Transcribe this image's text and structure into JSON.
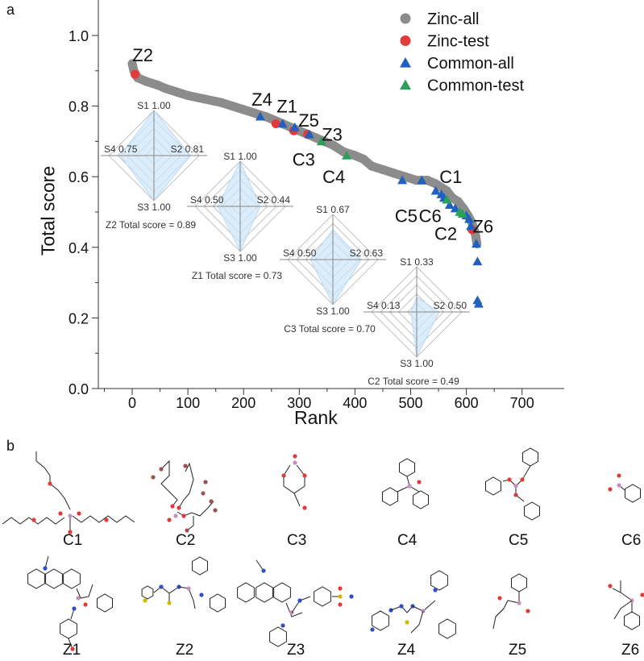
{
  "panel_labels": {
    "a": "a",
    "b": "b"
  },
  "chart_data": [
    {
      "type": "scatter",
      "xlabel": "Rank",
      "ylabel": "Total score",
      "xlim": [
        -60,
        720
      ],
      "ylim": [
        0,
        1.1
      ],
      "xticks": [
        "0",
        "100",
        "200",
        "300",
        "400",
        "500",
        "600",
        "700"
      ],
      "yticks": [
        "0.0",
        "0.2",
        "0.4",
        "0.6",
        "0.8",
        "1.0"
      ],
      "grid": false,
      "legend_position": "top-right",
      "series": [
        {
          "name": "Zinc-all",
          "marker": "circle",
          "color": "#8c8c8c",
          "points": [
            [
              0,
              0.92
            ],
            [
              3,
              0.9
            ],
            [
              10,
              0.88
            ],
            [
              25,
              0.87
            ],
            [
              45,
              0.86
            ],
            [
              60,
              0.85
            ],
            [
              80,
              0.84
            ],
            [
              100,
              0.83
            ],
            [
              130,
              0.82
            ],
            [
              160,
              0.81
            ],
            [
              180,
              0.8
            ],
            [
              200,
              0.79
            ],
            [
              220,
              0.78
            ],
            [
              240,
              0.77
            ],
            [
              255,
              0.76
            ],
            [
              270,
              0.75
            ],
            [
              285,
              0.74
            ],
            [
              300,
              0.73
            ],
            [
              315,
              0.72
            ],
            [
              330,
              0.71
            ],
            [
              345,
              0.7
            ],
            [
              360,
              0.69
            ],
            [
              380,
              0.67
            ],
            [
              400,
              0.66
            ],
            [
              415,
              0.65
            ],
            [
              430,
              0.63
            ],
            [
              450,
              0.62
            ],
            [
              470,
              0.61
            ],
            [
              490,
              0.6
            ],
            [
              510,
              0.59
            ],
            [
              530,
              0.59
            ],
            [
              545,
              0.58
            ],
            [
              555,
              0.57
            ],
            [
              565,
              0.56
            ],
            [
              575,
              0.54
            ],
            [
              585,
              0.53
            ],
            [
              595,
              0.51
            ],
            [
              603,
              0.49
            ],
            [
              610,
              0.47
            ],
            [
              614,
              0.45
            ],
            [
              617,
              0.43
            ],
            [
              619,
              0.41
            ]
          ]
        },
        {
          "name": "Zinc-test",
          "marker": "circle",
          "color": "#e23a3a",
          "points": [
            [
              5,
              0.89
            ],
            [
              258,
              0.75
            ],
            [
              290,
              0.73
            ],
            [
              315,
              0.72
            ],
            [
              610,
              0.45
            ]
          ]
        },
        {
          "name": "Common-all",
          "marker": "triangle",
          "color": "#2060c0",
          "points": [
            [
              230,
              0.77
            ],
            [
              270,
              0.75
            ],
            [
              292,
              0.74
            ],
            [
              318,
              0.72
            ],
            [
              485,
              0.59
            ],
            [
              520,
              0.59
            ],
            [
              545,
              0.56
            ],
            [
              555,
              0.55
            ],
            [
              560,
              0.54
            ],
            [
              570,
              0.52
            ],
            [
              580,
              0.51
            ],
            [
              600,
              0.49
            ],
            [
              605,
              0.48
            ],
            [
              608,
              0.46
            ],
            [
              618,
              0.41
            ],
            [
              620,
              0.36
            ],
            [
              620,
              0.25
            ],
            [
              622,
              0.24
            ]
          ]
        },
        {
          "name": "Common-test",
          "marker": "triangle",
          "color": "#2aa05a",
          "points": [
            [
              340,
              0.7
            ],
            [
              385,
              0.66
            ],
            [
              565,
              0.535
            ],
            [
              588,
              0.5
            ],
            [
              593,
              0.495
            ]
          ]
        }
      ],
      "annotations": [
        {
          "text": "Z2",
          "x": 19,
          "y": 0.945
        },
        {
          "text": "Z4",
          "x": 233,
          "y": 0.82
        },
        {
          "text": "Z1",
          "x": 278,
          "y": 0.8
        },
        {
          "text": "Z5",
          "x": 317,
          "y": 0.76
        },
        {
          "text": "Z3",
          "x": 359,
          "y": 0.72
        },
        {
          "text": "C3",
          "x": 308,
          "y": 0.65
        },
        {
          "text": "C4",
          "x": 362,
          "y": 0.6
        },
        {
          "text": "C1",
          "x": 572,
          "y": 0.6
        },
        {
          "text": "C5",
          "x": 492,
          "y": 0.49
        },
        {
          "text": "C6",
          "x": 535,
          "y": 0.49
        },
        {
          "text": "C2",
          "x": 563,
          "y": 0.44
        },
        {
          "text": "Z6",
          "x": 630,
          "y": 0.46
        }
      ]
    },
    {
      "type": "radar",
      "axes": [
        "S1",
        "S2",
        "S3",
        "S4"
      ],
      "values": [
        "1.00",
        "0.81",
        "1.00",
        "0.75"
      ],
      "caption": "Z2 Total score = 0.89"
    },
    {
      "type": "radar",
      "axes": [
        "S1",
        "S2",
        "S3",
        "S4"
      ],
      "values": [
        "1.00",
        "0.44",
        "1.00",
        "0.50"
      ],
      "caption": "Z1 Total score = 0.73"
    },
    {
      "type": "radar",
      "axes": [
        "S1",
        "S2",
        "S3",
        "S4"
      ],
      "values": [
        "0.67",
        "0.63",
        "1.00",
        "0.50"
      ],
      "caption": "C3 Total score = 0.70"
    },
    {
      "type": "radar",
      "axes": [
        "S1",
        "S2",
        "S3",
        "S4"
      ],
      "values": [
        "0.33",
        "0.50",
        "1.00",
        "0.13"
      ],
      "caption": "C2 Total score = 0.49"
    }
  ],
  "molecules": [
    "C1",
    "C2",
    "C3",
    "C4",
    "C5",
    "C6",
    "Z1",
    "Z2",
    "Z3",
    "Z4",
    "Z5",
    "Z6"
  ]
}
